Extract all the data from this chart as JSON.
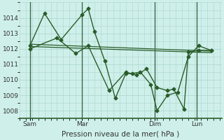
{
  "background_color": "#cff0ea",
  "grid_color": "#aad4cc",
  "line_color": "#2a5c2a",
  "marker_color": "#2a5c2a",
  "xlabel": "Pression niveau de la mer( hPa )",
  "xlabel_fontsize": 7.5,
  "tick_fontsize": 6.5,
  "ylim": [
    1007.5,
    1015.0
  ],
  "yticks": [
    1008,
    1009,
    1010,
    1011,
    1012,
    1013,
    1014
  ],
  "xtick_labels": [
    "Sam",
    "Mar",
    "Dim",
    "Lun"
  ],
  "xtick_positions": [
    0.5,
    3.0,
    6.5,
    8.5
  ],
  "vline_x": [
    0.5,
    3.0,
    6.5,
    8.5
  ],
  "series1_x": [
    0.5,
    1.2,
    2.0,
    3.0,
    3.3,
    3.6,
    4.1,
    4.6,
    5.1,
    5.4,
    5.8,
    6.3,
    6.6,
    7.1,
    7.6,
    8.1,
    8.6,
    9.2
  ],
  "series1_y": [
    1012.2,
    1014.3,
    1012.6,
    1014.2,
    1014.6,
    1013.1,
    1011.2,
    1008.8,
    1010.4,
    1010.4,
    1010.5,
    1009.7,
    1008.0,
    1009.0,
    1009.2,
    1011.5,
    1012.2,
    1011.9
  ],
  "series2_x": [
    0.5,
    1.8,
    2.7,
    3.3,
    4.3,
    5.1,
    5.6,
    6.1,
    6.6,
    7.1,
    7.4,
    7.9,
    8.1,
    8.6,
    9.2
  ],
  "series2_y": [
    1012.0,
    1012.7,
    1011.7,
    1012.2,
    1009.3,
    1010.5,
    1010.3,
    1010.7,
    1009.5,
    1009.3,
    1009.4,
    1008.1,
    1011.8,
    1011.9,
    1011.9
  ],
  "series3_x": [
    0.5,
    9.2
  ],
  "series3_y": [
    1012.3,
    1011.85
  ],
  "series4_x": [
    0.5,
    9.2
  ],
  "series4_y": [
    1012.15,
    1011.75
  ],
  "xlim": [
    0.0,
    9.7
  ],
  "figsize": [
    3.2,
    2.0
  ],
  "dpi": 100
}
